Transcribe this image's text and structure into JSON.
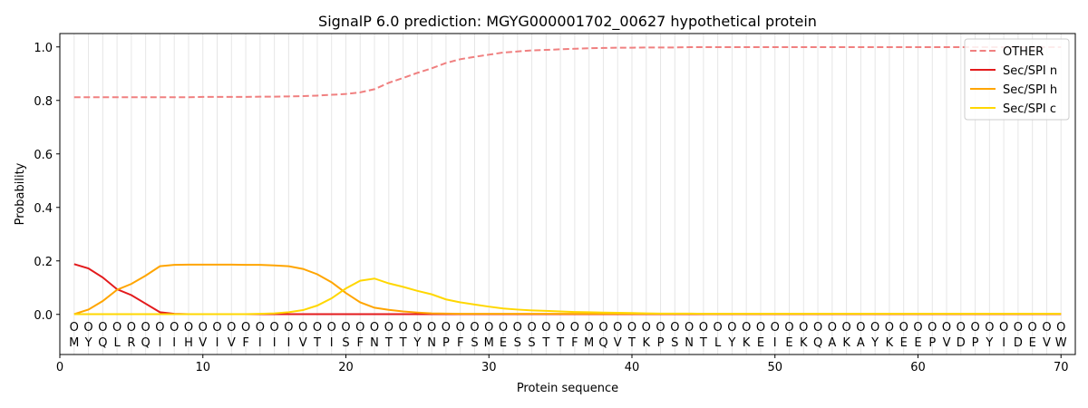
{
  "chart_data": {
    "type": "line",
    "title": "SignalP 6.0 prediction: MGYG000001702_00627 hypothetical protein",
    "xlabel": "Protein sequence",
    "ylabel": "Probability",
    "xlim": [
      0,
      71
    ],
    "ylim": [
      -0.15,
      1.05
    ],
    "grid": "vertical lines at each residue",
    "legend_position": "top-right",
    "x_ticks": [
      0,
      10,
      20,
      30,
      40,
      50,
      60,
      70
    ],
    "y_ticks": [
      0.0,
      0.2,
      0.4,
      0.6,
      0.8,
      1.0
    ],
    "sequence": [
      "M",
      "Y",
      "Q",
      "L",
      "R",
      "Q",
      "I",
      "I",
      "H",
      "V",
      "I",
      "V",
      "F",
      "I",
      "I",
      "I",
      "V",
      "T",
      "I",
      "S",
      "F",
      "N",
      "T",
      "T",
      "Y",
      "N",
      "P",
      "F",
      "S",
      "M",
      "E",
      "S",
      "S",
      "T",
      "T",
      "F",
      "M",
      "Q",
      "V",
      "T",
      "K",
      "P",
      "S",
      "N",
      "T",
      "L",
      "Y",
      "K",
      "E",
      "I",
      "E",
      "K",
      "Q",
      "A",
      "K",
      "A",
      "Y",
      "K",
      "E",
      "E",
      "P",
      "V",
      "D",
      "P",
      "Y",
      "I",
      "D",
      "E",
      "V",
      "W"
    ],
    "region_labels": [
      "O",
      "O",
      "O",
      "O",
      "O",
      "O",
      "O",
      "O",
      "O",
      "O",
      "O",
      "O",
      "O",
      "O",
      "O",
      "O",
      "O",
      "O",
      "O",
      "O",
      "O",
      "O",
      "O",
      "O",
      "O",
      "O",
      "O",
      "O",
      "O",
      "O",
      "O",
      "O",
      "O",
      "O",
      "O",
      "O",
      "O",
      "O",
      "O",
      "O",
      "O",
      "O",
      "O",
      "O",
      "O",
      "O",
      "O",
      "O",
      "O",
      "O",
      "O",
      "O",
      "O",
      "O",
      "O",
      "O",
      "O",
      "O",
      "O",
      "O",
      "O",
      "O",
      "O",
      "O",
      "O",
      "O",
      "O",
      "O",
      "O",
      "O"
    ],
    "series": [
      {
        "name": "OTHER",
        "color": "#f08080",
        "style": "dashed",
        "values": [
          0.812,
          0.812,
          0.812,
          0.812,
          0.812,
          0.812,
          0.812,
          0.812,
          0.812,
          0.813,
          0.813,
          0.813,
          0.813,
          0.814,
          0.814,
          0.815,
          0.816,
          0.818,
          0.821,
          0.824,
          0.83,
          0.842,
          0.866,
          0.884,
          0.903,
          0.92,
          0.94,
          0.954,
          0.963,
          0.971,
          0.979,
          0.983,
          0.987,
          0.989,
          0.991,
          0.993,
          0.995,
          0.996,
          0.997,
          0.997,
          0.998,
          0.998,
          0.998,
          0.999,
          0.999,
          0.999,
          0.999,
          0.999,
          0.999,
          0.999,
          0.999,
          0.999,
          0.999,
          0.999,
          0.999,
          0.999,
          0.999,
          0.999,
          0.999,
          0.999,
          0.999,
          0.999,
          0.999,
          0.999,
          0.999,
          0.999,
          0.999,
          0.999,
          0.999,
          0.999
        ]
      },
      {
        "name": "Sec/SPI n",
        "color": "#e31a1c",
        "style": "solid",
        "values": [
          0.188,
          0.172,
          0.138,
          0.094,
          0.072,
          0.04,
          0.008,
          0.002,
          0.001,
          0.001,
          0.001,
          0.001,
          0.001,
          0.001,
          0.001,
          0.001,
          0.001,
          0.001,
          0.001,
          0.001,
          0.001,
          0.001,
          0.001,
          0.001,
          0.001,
          0.001,
          0.001,
          0.001,
          0.001,
          0.001,
          0.001,
          0.001,
          0.001,
          0.001,
          0.001,
          0.001,
          0.001,
          0.001,
          0.001,
          0.001,
          0.001,
          0.001,
          0.001,
          0.001,
          0.001,
          0.001,
          0.001,
          0.001,
          0.001,
          0.001,
          0.001,
          0.001,
          0.001,
          0.001,
          0.001,
          0.001,
          0.001,
          0.001,
          0.001,
          0.001,
          0.001,
          0.001,
          0.001,
          0.001,
          0.001,
          0.001,
          0.001,
          0.001,
          0.001,
          0.001
        ]
      },
      {
        "name": "Sec/SPI h",
        "color": "#ffa500",
        "style": "solid",
        "values": [
          0.001,
          0.018,
          0.05,
          0.092,
          0.114,
          0.145,
          0.18,
          0.185,
          0.186,
          0.186,
          0.186,
          0.186,
          0.185,
          0.185,
          0.183,
          0.18,
          0.17,
          0.15,
          0.12,
          0.08,
          0.045,
          0.025,
          0.017,
          0.011,
          0.007,
          0.004,
          0.003,
          0.002,
          0.002,
          0.002,
          0.002,
          0.002,
          0.002,
          0.002,
          0.002,
          0.002,
          0.002,
          0.002,
          0.002,
          0.002,
          0.002,
          0.002,
          0.002,
          0.002,
          0.002,
          0.002,
          0.002,
          0.002,
          0.002,
          0.002,
          0.002,
          0.002,
          0.002,
          0.002,
          0.002,
          0.002,
          0.002,
          0.002,
          0.002,
          0.002,
          0.002,
          0.002,
          0.002,
          0.002,
          0.002,
          0.002,
          0.002,
          0.002,
          0.002,
          0.002
        ]
      },
      {
        "name": "Sec/SPI c",
        "color": "#ffd700",
        "style": "solid",
        "values": [
          0.001,
          0.001,
          0.001,
          0.001,
          0.001,
          0.001,
          0.001,
          0.001,
          0.001,
          0.001,
          0.001,
          0.001,
          0.001,
          0.002,
          0.004,
          0.008,
          0.016,
          0.033,
          0.06,
          0.097,
          0.126,
          0.134,
          0.116,
          0.103,
          0.088,
          0.075,
          0.056,
          0.045,
          0.037,
          0.029,
          0.022,
          0.018,
          0.015,
          0.013,
          0.011,
          0.009,
          0.008,
          0.007,
          0.006,
          0.005,
          0.004,
          0.003,
          0.003,
          0.003,
          0.002,
          0.002,
          0.002,
          0.002,
          0.002,
          0.002,
          0.002,
          0.002,
          0.002,
          0.002,
          0.002,
          0.002,
          0.002,
          0.002,
          0.002,
          0.002,
          0.002,
          0.002,
          0.002,
          0.002,
          0.002,
          0.002,
          0.002,
          0.002,
          0.002,
          0.002
        ]
      }
    ]
  }
}
